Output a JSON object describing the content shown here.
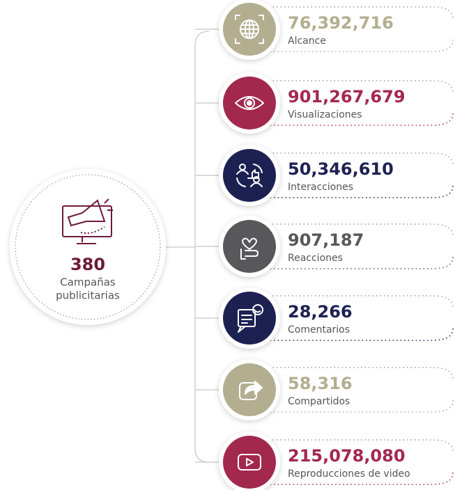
{
  "center": {
    "value": "380",
    "label": [
      "Campañas",
      "publicitarias"
    ],
    "color": "#6e1a3a"
  },
  "items": [
    {
      "value": "76,392,716",
      "label": "Alcance",
      "color": "#b3ae90",
      "icon": "globe"
    },
    {
      "value": "901,267,679",
      "label": "Visualizaciones",
      "color": "#a3284e",
      "icon": "eye"
    },
    {
      "value": "50,346,610",
      "label": "Interacciones",
      "color": "#1d2152",
      "icon": "people"
    },
    {
      "value": "907,187",
      "label": "Reacciones",
      "color": "#58585a",
      "icon": "heart"
    },
    {
      "value": "28,266",
      "label": "Comentarios",
      "color": "#1d2152",
      "icon": "chat"
    },
    {
      "value": "58,316",
      "label": "Compartidos",
      "color": "#b3ae90",
      "icon": "share"
    },
    {
      "value": "215,078,080",
      "label": "Reproducciones de video",
      "color": "#a3284e",
      "icon": "play"
    }
  ]
}
